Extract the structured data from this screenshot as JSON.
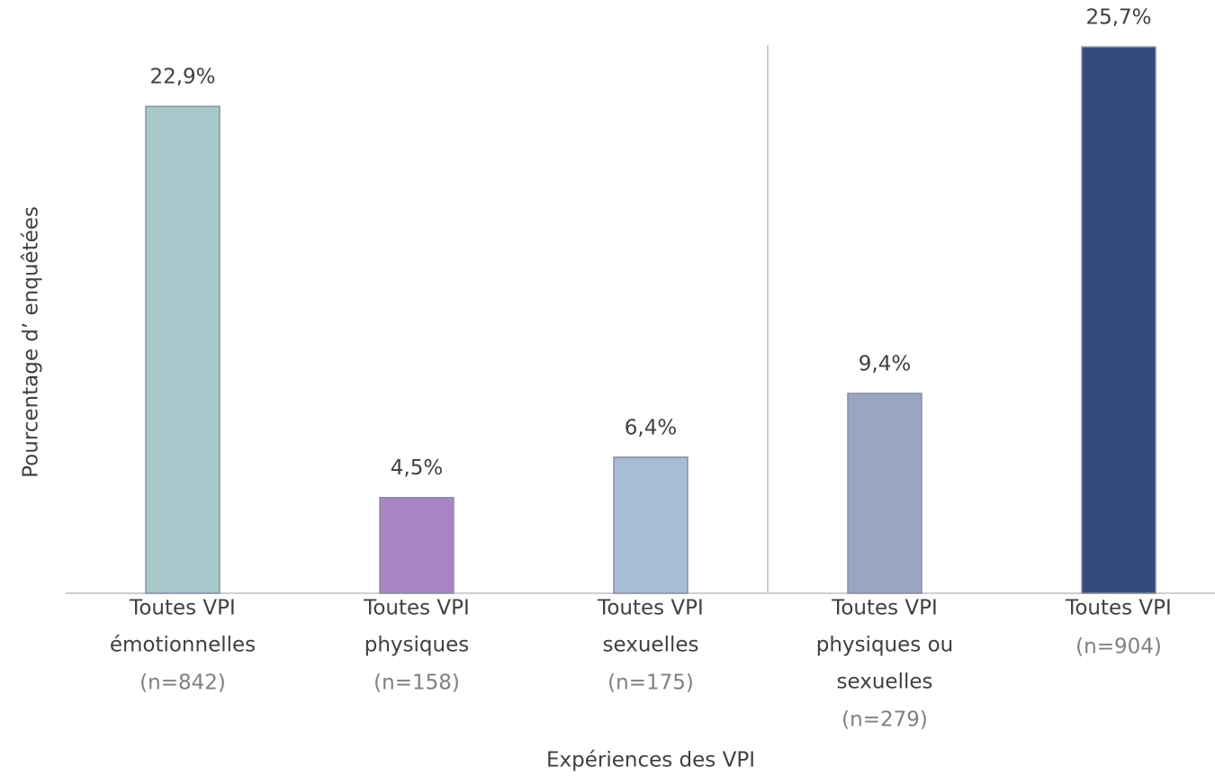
{
  "chart_data": {
    "type": "bar",
    "y_label": "Pourcentage d’ enquêtées",
    "x_label": "Expériences des VPI",
    "categories": [
      [
        "Toutes VPI",
        "émotionnelles"
      ],
      [
        "Toutes VPI",
        "physiques"
      ],
      [
        "Toutes VPI",
        "sexuelles"
      ],
      [
        "Toutes VPI",
        "physiques ou",
        "sexuelles"
      ],
      [
        "Toutes VPI"
      ]
    ],
    "sample_sizes": [
      "(n=842)",
      "(n=158)",
      "(n=175)",
      "(n=279)",
      "(n=904)"
    ],
    "values": [
      22.9,
      4.5,
      6.4,
      9.4,
      25.7
    ],
    "value_labels": [
      "22,9%",
      "4,5%",
      "6,4%",
      "9,4%",
      "25,7%"
    ],
    "colors": [
      "#a8c8cc",
      "#a984c4",
      "#a8bcd6",
      "#9aa6bf",
      "#344b7c"
    ],
    "ylim": [
      0,
      26
    ]
  }
}
